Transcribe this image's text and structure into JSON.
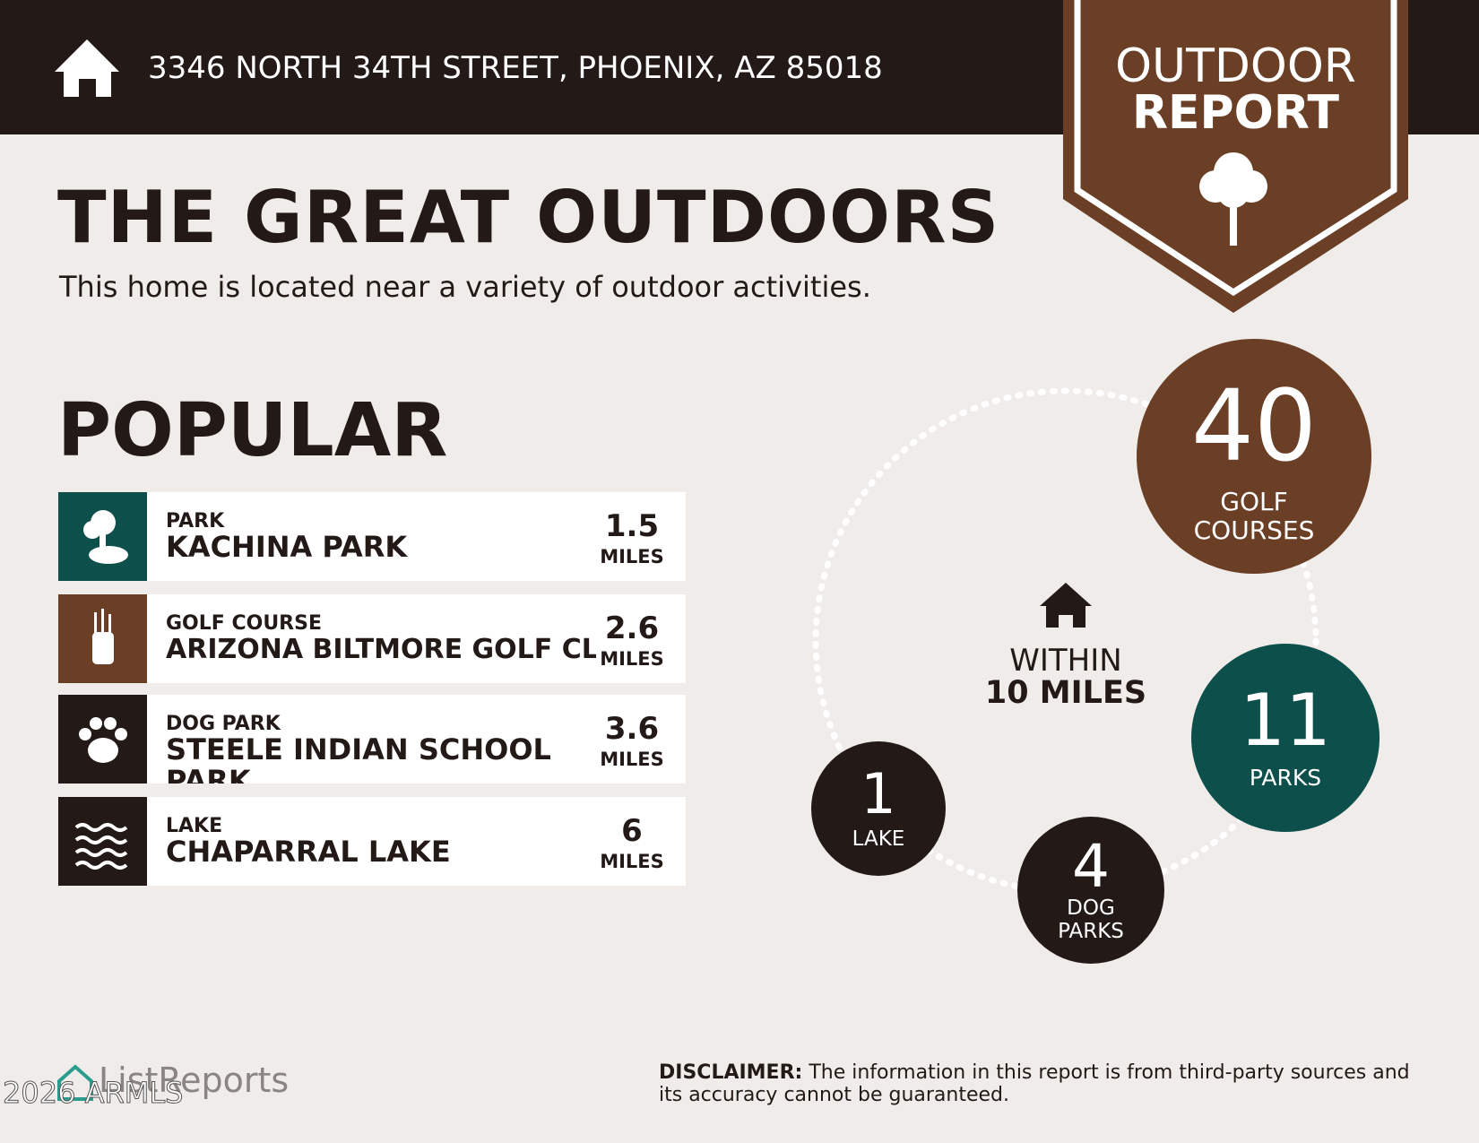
{
  "header": {
    "address": "3346 NORTH 34TH STREET, PHOENIX, AZ 85018"
  },
  "badge": {
    "line1": "OUTDOOR",
    "line2": "REPORT"
  },
  "intro": {
    "title": "THE GREAT OUTDOORS",
    "subtitle": "This home is located near a variety of outdoor activities."
  },
  "popular": {
    "heading": "POPULAR",
    "items": [
      {
        "category": "PARK",
        "name": "KACHINA PARK",
        "distance": 1.5,
        "unit": "MILES"
      },
      {
        "category": "GOLF COURSE",
        "name": "ARIZONA BILTMORE GOLF CLUB",
        "distance": 2.6,
        "unit": "MILES"
      },
      {
        "category": "DOG PARK",
        "name": "STEELE INDIAN SCHOOL PARK",
        "distance": 3.6,
        "unit": "MILES"
      },
      {
        "category": "LAKE",
        "name": "CHAPARRAL LAKE",
        "distance": 6,
        "unit": "MILES"
      }
    ]
  },
  "radius": {
    "line1": "WITHIN",
    "line2": "10 MILES"
  },
  "stats": [
    {
      "value": 40,
      "label": "GOLF COURSES"
    },
    {
      "value": 11,
      "label": "PARKS"
    },
    {
      "value": 4,
      "label": "DOG PARKS"
    },
    {
      "value": 1,
      "label": "LAKE"
    }
  ],
  "footer": {
    "logo": "ListReports",
    "watermark": "2026 ARMLS",
    "disclaimer_label": "DISCLAIMER:",
    "disclaimer": "The information in this report is from third-party sources and its accuracy cannot be guaranteed."
  }
}
